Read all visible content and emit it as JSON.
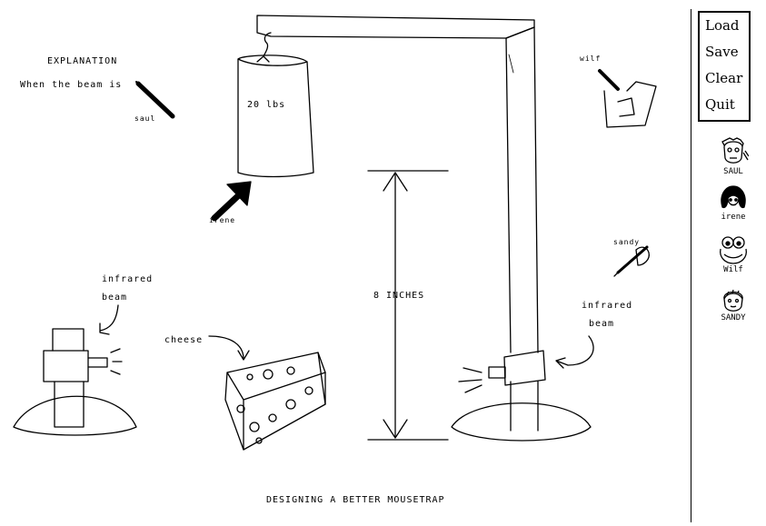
{
  "drawing": {
    "explanation_title": "EXPLANATION",
    "explanation_text": "When the beam is",
    "weight_label": "20 lbs",
    "height_label": "8 INCHES",
    "beam_label_left_1": "infrared",
    "beam_label_left_2": "beam",
    "beam_label_right_1": "infrared",
    "beam_label_right_2": "beam",
    "cheese_label": "cheese",
    "caption": "DESIGNING A BETTER MOUSETRAP",
    "cursor_labels": {
      "saul": "saul",
      "irene": "irene",
      "wilf": "wilf",
      "sandy": "sandy"
    }
  },
  "menu": {
    "load": "Load",
    "save": "Save",
    "clear": "Clear",
    "quit": "Quit"
  },
  "participants": [
    {
      "name": "SAUL"
    },
    {
      "name": "irene"
    },
    {
      "name": "Wilf"
    },
    {
      "name": "SANDY"
    }
  ]
}
